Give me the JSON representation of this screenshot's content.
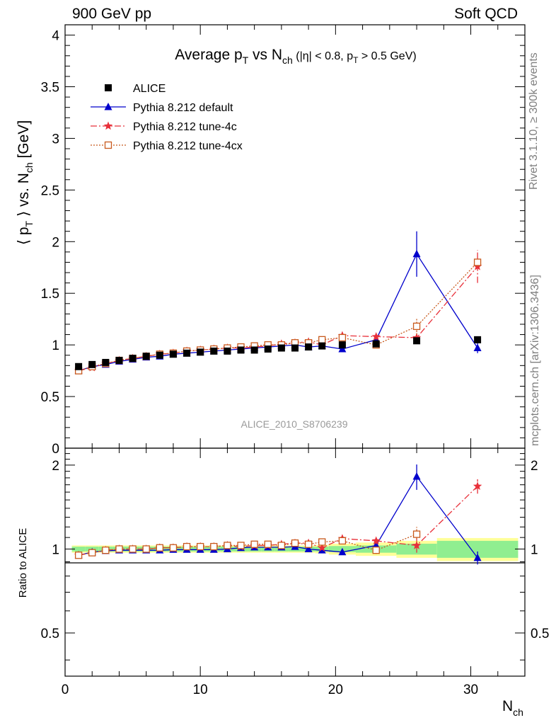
{
  "header": {
    "left": "900 GeV pp",
    "right": "Soft QCD"
  },
  "side_labels": {
    "rivet": "Rivet 3.1.10, ≥ 300k events",
    "mcplots": "mcplots.cern.ch [arXiv:1306.3436]"
  },
  "chart_data": {
    "type": "scatter",
    "title": "Average pT vs Nch (|η| < 0.8, pT > 0.5 GeV)",
    "title_parts": {
      "a": "Average p",
      "a_sub": "T",
      "b": " vs N",
      "b_sub": "ch",
      "c": " (|η| < 0.8, p",
      "c_sub": "T",
      "d": " > 0.5 GeV)"
    },
    "ylabel_parts": {
      "a": "⟨ p",
      "a_sub": "T",
      "b": " ⟩ vs. N",
      "b_sub": "ch",
      "c": " [GeV]"
    },
    "xlabel_parts": {
      "a": "N",
      "a_sub": "ch"
    },
    "ratio_ylabel": "Ratio to ALICE",
    "watermark": "ALICE_2010_S8706239",
    "xlim": [
      0,
      34
    ],
    "ylim": [
      0,
      4.1
    ],
    "ratio_ylim": [
      0.35,
      2.3
    ],
    "x_ticks": [
      0,
      10,
      20,
      30
    ],
    "x_tick_labels": [
      "0",
      "10",
      "20",
      "30"
    ],
    "y_ticks": [
      0,
      0.5,
      1,
      1.5,
      2,
      2.5,
      3,
      3.5,
      4
    ],
    "y_tick_labels": [
      "0",
      "0.5",
      "1",
      "1.5",
      "2",
      "2.5",
      "3",
      "3.5",
      "4"
    ],
    "ratio_ticks": [
      0.5,
      1,
      2
    ],
    "ratio_tick_labels": [
      "0.5",
      "1",
      "2"
    ],
    "legend": [
      "ALICE",
      "Pythia 8.212 default",
      "Pythia 8.212 tune-4c",
      "Pythia 8.212 tune-4cx"
    ],
    "series": [
      {
        "name": "ALICE",
        "color": "#000000",
        "marker": "square-filled",
        "line": "none",
        "x": [
          1,
          2,
          3,
          4,
          5,
          6,
          7,
          8,
          9,
          10,
          11,
          12,
          13,
          14,
          15,
          16,
          17,
          18,
          19,
          20.5,
          23,
          26,
          30.5
        ],
        "y": [
          0.79,
          0.81,
          0.83,
          0.85,
          0.87,
          0.89,
          0.9,
          0.91,
          0.92,
          0.93,
          0.94,
          0.94,
          0.95,
          0.95,
          0.96,
          0.97,
          0.97,
          0.98,
          0.99,
          1.0,
          1.01,
          1.04,
          1.05
        ],
        "xerr": [
          0.5,
          0.5,
          0.5,
          0.5,
          0.5,
          0.5,
          0.5,
          0.5,
          0.5,
          0.5,
          0.5,
          0.5,
          0.5,
          0.5,
          0.5,
          0.5,
          0.5,
          0.5,
          0.5,
          1.0,
          1.5,
          1.5,
          3.0
        ],
        "ratio_band_green": [
          0.02,
          0.02,
          0.02,
          0.02,
          0.02,
          0.02,
          0.02,
          0.02,
          0.02,
          0.02,
          0.02,
          0.02,
          0.02,
          0.02,
          0.02,
          0.02,
          0.02,
          0.02,
          0.02,
          0.025,
          0.03,
          0.045,
          0.07
        ],
        "ratio_band_yellow": [
          0.03,
          0.03,
          0.03,
          0.03,
          0.03,
          0.03,
          0.03,
          0.03,
          0.03,
          0.03,
          0.03,
          0.03,
          0.03,
          0.03,
          0.03,
          0.03,
          0.03,
          0.03,
          0.035,
          0.045,
          0.055,
          0.07,
          0.095
        ]
      },
      {
        "name": "Pythia 8.212 default",
        "color": "#0000cc",
        "marker": "triangle-filled",
        "line": "solid",
        "x": [
          1,
          2,
          3,
          4,
          5,
          6,
          7,
          8,
          9,
          10,
          11,
          12,
          13,
          14,
          15,
          16,
          17,
          18,
          19,
          20.5,
          23,
          26,
          30.5
        ],
        "y": [
          0.75,
          0.79,
          0.81,
          0.84,
          0.86,
          0.88,
          0.89,
          0.91,
          0.92,
          0.93,
          0.94,
          0.95,
          0.96,
          0.97,
          0.98,
          0.99,
          1.0,
          0.98,
          0.99,
          0.96,
          1.05,
          1.88,
          0.97
        ],
        "yerr": [
          0,
          0,
          0,
          0,
          0,
          0,
          0,
          0,
          0,
          0,
          0,
          0,
          0,
          0,
          0,
          0,
          0,
          0,
          0,
          0.02,
          0.03,
          0.22,
          0.05
        ],
        "ratio": [
          0.95,
          0.975,
          0.985,
          0.99,
          0.99,
          0.99,
          0.99,
          0.995,
          0.995,
          0.995,
          0.995,
          1.0,
          1.01,
          1.015,
          1.015,
          1.015,
          1.02,
          1.0,
          0.99,
          0.975,
          1.03,
          1.82,
          0.93
        ],
        "ratio_err": [
          0,
          0,
          0,
          0,
          0,
          0,
          0,
          0,
          0,
          0,
          0,
          0,
          0,
          0,
          0,
          0,
          0,
          0,
          0,
          0.02,
          0.03,
          0.19,
          0.05
        ]
      },
      {
        "name": "Pythia 8.212 tune-4c",
        "color": "#e8303a",
        "marker": "star-filled",
        "line": "dashdot",
        "x": [
          1,
          2,
          3,
          4,
          5,
          6,
          7,
          8,
          9,
          10,
          11,
          12,
          13,
          14,
          15,
          16,
          17,
          18,
          19,
          20.5,
          23,
          26,
          30.5
        ],
        "y": [
          0.75,
          0.78,
          0.82,
          0.85,
          0.87,
          0.89,
          0.91,
          0.92,
          0.94,
          0.95,
          0.96,
          0.97,
          0.97,
          0.98,
          0.99,
          1.01,
          1.02,
          1.03,
          1.0,
          1.09,
          1.08,
          1.07,
          1.76
        ],
        "yerr": [
          0,
          0,
          0,
          0,
          0,
          0,
          0,
          0,
          0,
          0,
          0,
          0,
          0,
          0,
          0,
          0,
          0,
          0,
          0,
          0.02,
          0.03,
          0.06,
          0.16
        ],
        "ratio": [
          0.95,
          0.97,
          0.99,
          1.0,
          1.0,
          1.0,
          1.01,
          1.01,
          1.02,
          1.02,
          1.02,
          1.03,
          1.02,
          1.03,
          1.03,
          1.04,
          1.05,
          1.05,
          1.01,
          1.09,
          1.07,
          1.03,
          1.68
        ],
        "ratio_err": [
          0,
          0,
          0,
          0,
          0,
          0,
          0,
          0,
          0,
          0,
          0,
          0,
          0,
          0,
          0,
          0,
          0,
          0,
          0,
          0.02,
          0.03,
          0.06,
          0.1
        ]
      },
      {
        "name": "Pythia 8.212 tune-4cx",
        "color": "#c8591c",
        "marker": "square-open",
        "line": "dotted",
        "x": [
          1,
          2,
          3,
          4,
          5,
          6,
          7,
          8,
          9,
          10,
          11,
          12,
          13,
          14,
          15,
          16,
          17,
          18,
          19,
          20.5,
          23,
          26,
          30.5
        ],
        "y": [
          0.75,
          0.79,
          0.82,
          0.85,
          0.87,
          0.89,
          0.91,
          0.92,
          0.94,
          0.95,
          0.96,
          0.97,
          0.98,
          0.99,
          1.0,
          1.0,
          1.02,
          1.02,
          1.05,
          1.07,
          1.0,
          1.18,
          1.8
        ],
        "yerr": [
          0,
          0,
          0,
          0,
          0,
          0,
          0,
          0,
          0,
          0,
          0,
          0,
          0,
          0,
          0,
          0,
          0,
          0,
          0,
          0.02,
          0.03,
          0.08,
          0
        ],
        "ratio": [
          0.95,
          0.97,
          0.99,
          1.0,
          1.0,
          1.0,
          1.01,
          1.01,
          1.02,
          1.02,
          1.02,
          1.03,
          1.03,
          1.04,
          1.04,
          1.03,
          1.05,
          1.04,
          1.06,
          1.07,
          0.99,
          1.13,
          null
        ],
        "ratio_err": [
          0,
          0,
          0,
          0,
          0,
          0,
          0,
          0,
          0,
          0,
          0,
          0,
          0,
          0,
          0,
          0,
          0,
          0,
          0,
          0.02,
          0.03,
          0.07,
          0
        ]
      }
    ]
  }
}
